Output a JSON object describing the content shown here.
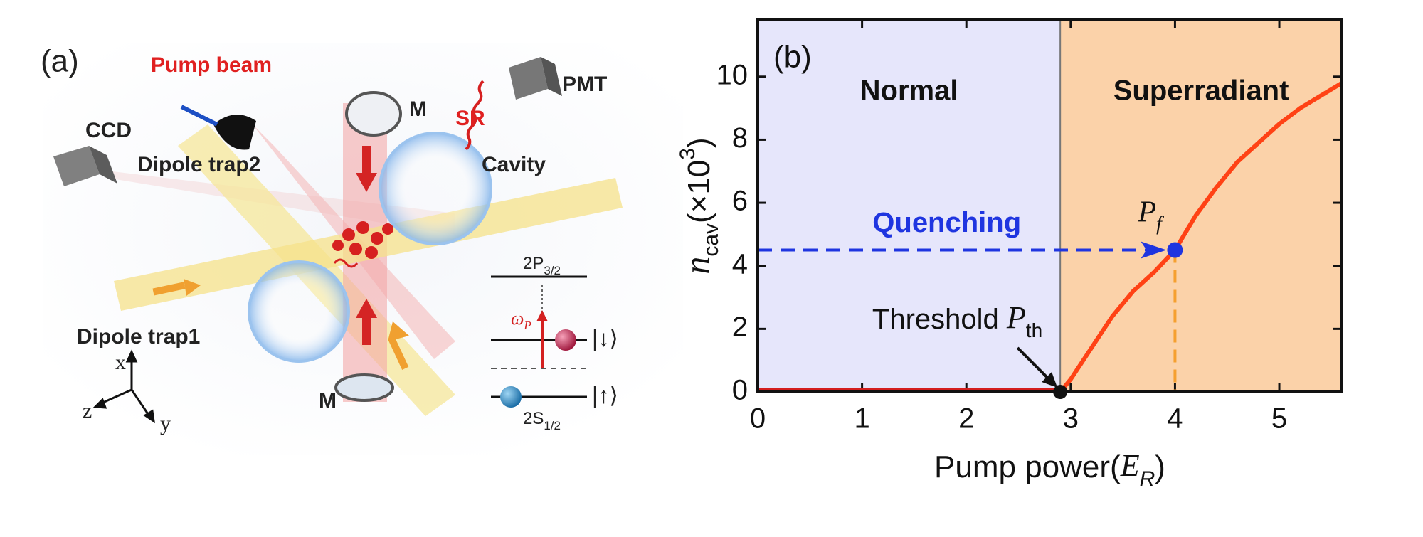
{
  "panel_a": {
    "label": "(a)",
    "pump_beam": "Pump beam",
    "sr": "SR",
    "pmt": "PMT",
    "ccd": "CCD",
    "mirror_top": "M",
    "mirror_bottom": "M",
    "dipole_trap2": "Dipole trap2",
    "cavity": "Cavity",
    "dipole_trap1": "Dipole trap1",
    "level_p": {
      "base": "2P",
      "sub": "3/2"
    },
    "level_s": {
      "base": "2S",
      "sub": "1/2"
    },
    "omega": {
      "base": "ω",
      "sub": "P"
    },
    "state_down": "|↓⟩",
    "state_up": "|↑⟩",
    "axes": {
      "x": "x",
      "y": "y",
      "z": "z"
    }
  },
  "chart_data": {
    "type": "line",
    "panel_label": "(b)",
    "xlabel": {
      "text": "Pump power(",
      "var": "E",
      "sub": "R",
      "end": ")"
    },
    "ylabel": {
      "var": "n",
      "sub": "cav",
      "text": "(×10",
      "sup": "3",
      "end": ")"
    },
    "xlim": [
      0,
      5.6
    ],
    "ylim": [
      0,
      11.8
    ],
    "xticks": [
      0,
      1,
      2,
      3,
      4,
      5
    ],
    "yticks": [
      0,
      2,
      4,
      6,
      8,
      10
    ],
    "regions": [
      {
        "name": "Normal",
        "color": "#e6e6fb"
      },
      {
        "name": "Superradiant",
        "color": "#fbd2a9"
      }
    ],
    "threshold": 2.9,
    "threshold_label": {
      "text": "Threshold ",
      "var": "P",
      "sub": "th"
    },
    "quench": {
      "label": "Quenching",
      "x": 4.0,
      "y": 4.5,
      "color": "#1f35e0",
      "point_label": {
        "var": "P",
        "sub": "f"
      }
    },
    "series": [
      {
        "color": "#d41e1e",
        "x": [
          0,
          0.5,
          1,
          1.5,
          2,
          2.5,
          2.9
        ],
        "values": [
          0.05,
          0.05,
          0.05,
          0.05,
          0.05,
          0.05,
          0.05
        ]
      },
      {
        "color": "#ff4215",
        "x": [
          2.9,
          3.0,
          3.2,
          3.4,
          3.6,
          3.8,
          4.0,
          4.2,
          4.4,
          4.6,
          4.8,
          5.0,
          5.2,
          5.4,
          5.6
        ],
        "values": [
          0,
          0.4,
          1.4,
          2.4,
          3.2,
          3.8,
          4.5,
          5.6,
          6.5,
          7.3,
          7.9,
          8.5,
          9.0,
          9.4,
          9.8
        ]
      }
    ]
  }
}
